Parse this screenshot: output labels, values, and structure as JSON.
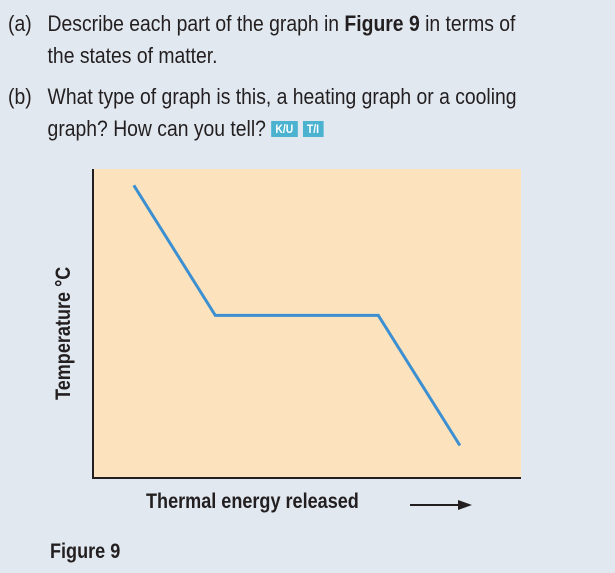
{
  "questions": [
    {
      "label": "(a)",
      "line1_pre": "Describe each part of the graph in ",
      "line1_bold": "Figure 9",
      "line1_post": " in terms of",
      "line2": "the states of matter."
    },
    {
      "label": "(b)",
      "line1": "What type of graph is this, a heating graph or a cooling",
      "line2": "graph? How can you tell?",
      "badges": [
        "K/U",
        "T/I"
      ]
    }
  ],
  "figure_caption": "Figure 9",
  "chart_data": {
    "type": "line",
    "title": "",
    "xlabel": "Thermal energy released",
    "ylabel": "Temperature °C",
    "x": [
      0,
      2,
      6,
      8
    ],
    "y": [
      9,
      5,
      5,
      1
    ],
    "xlim": [
      -1,
      9.5
    ],
    "ylim": [
      0,
      9.5
    ],
    "grid": false,
    "colors": {
      "line": "#3c8fd0",
      "background": "#fde3bd"
    }
  }
}
